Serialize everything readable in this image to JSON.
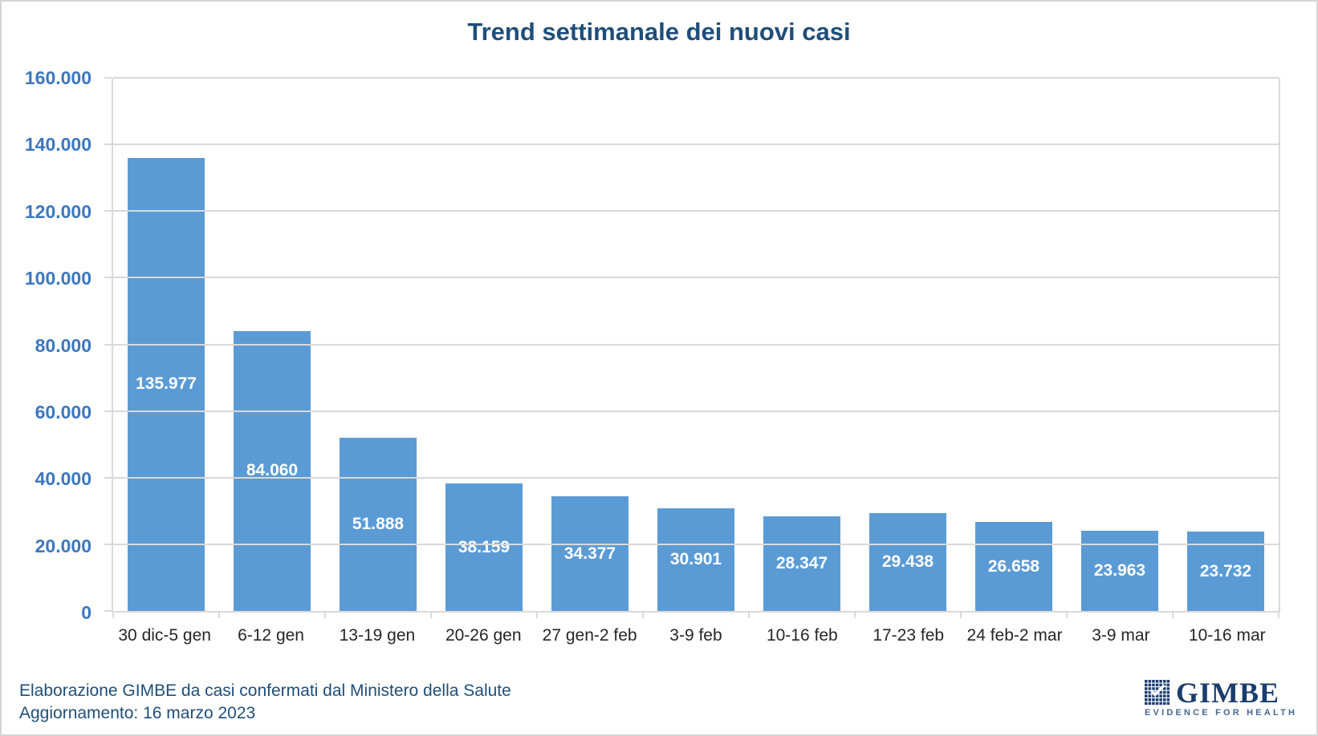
{
  "title": "Trend settimanale dei nuovi casi",
  "footer": {
    "line1": "Elaborazione GIMBE da casi confermati dal Ministero della Salute",
    "line2": "Aggiornamento: 16 marzo 2023"
  },
  "logo": {
    "wordmark": "GIMBE",
    "tagline": "EVIDENCE FOR HEALTH"
  },
  "colors": {
    "bar": "#5B9BD5",
    "title": "#1F4E79",
    "y_axis_label": "#3C77BE",
    "x_axis_label": "#262626",
    "gridline": "#D9D9D9",
    "footer_text": "#1F4E79",
    "bar_value_label": "#FFFFFF",
    "logo_navy": "#1B3D6E",
    "logo_tagline": "#44688F"
  },
  "chart_data": {
    "type": "bar",
    "title": "Trend settimanale dei nuovi casi",
    "categories": [
      "30 dic-5 gen",
      "6-12 gen",
      "13-19 gen",
      "20-26 gen",
      "27 gen-2 feb",
      "3-9 feb",
      "10-16 feb",
      "17-23 feb",
      "24 feb-2 mar",
      "3-9 mar",
      "10-16 mar"
    ],
    "values": [
      135977,
      84060,
      51888,
      38159,
      34377,
      30901,
      28347,
      29438,
      26658,
      23963,
      23732
    ],
    "value_labels": [
      "135.977",
      "84.060",
      "51.888",
      "38.159",
      "34.377",
      "30.901",
      "28.347",
      "29.438",
      "26.658",
      "23.963",
      "23.732"
    ],
    "xlabel": "",
    "ylabel": "",
    "ylim": [
      0,
      160000
    ],
    "y_ticks": [
      "0",
      "20.000",
      "40.000",
      "60.000",
      "80.000",
      "100.000",
      "120.000",
      "140.000",
      "160.000"
    ],
    "grid": true,
    "legend_position": "none",
    "value_label_position": "center-inside"
  }
}
